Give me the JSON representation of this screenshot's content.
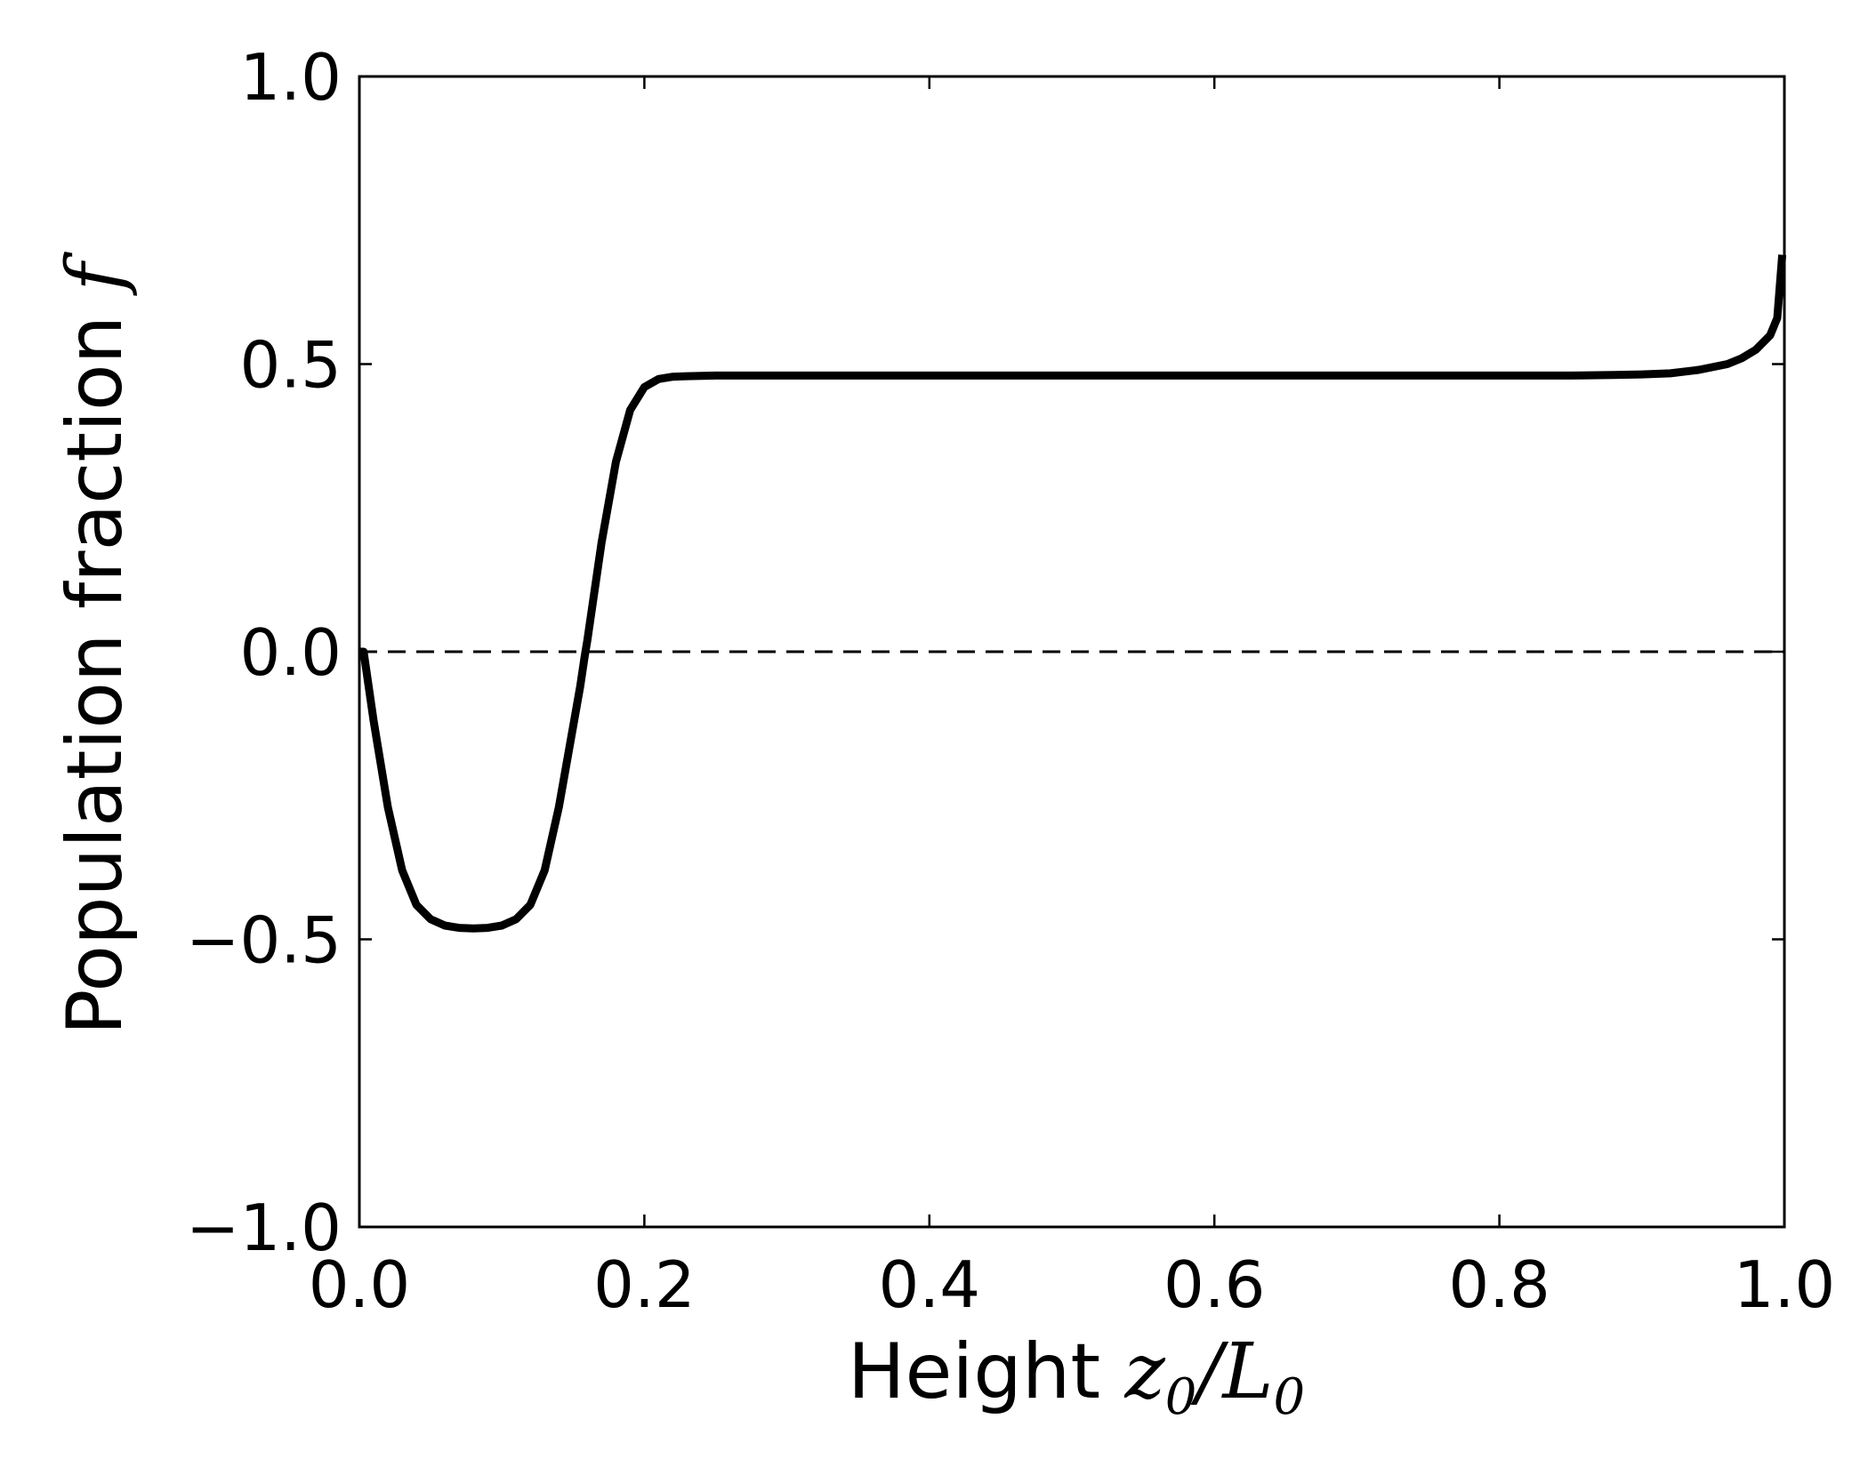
{
  "chart_data": {
    "type": "line",
    "title": "",
    "xlabel": {
      "text": "Height",
      "math_var": "z",
      "math_var_sub": "0",
      "math_sep": "/",
      "math_den": "L",
      "math_den_sub": "0"
    },
    "ylabel": {
      "text": "Population fraction",
      "math_var": "f"
    },
    "xlim": [
      0.0,
      1.0
    ],
    "ylim": [
      -1.0,
      1.0
    ],
    "xticks": [
      0.0,
      0.2,
      0.4,
      0.6,
      0.8,
      1.0
    ],
    "yticks": [
      -1.0,
      -0.5,
      0.0,
      0.5,
      1.0
    ],
    "xtick_labels": [
      "0.0",
      "0.2",
      "0.4",
      "0.6",
      "0.8",
      "1.0"
    ],
    "ytick_labels": [
      "−1.0",
      "−0.5",
      "0.0",
      "0.5",
      "1.0"
    ],
    "grid": false,
    "reference_line": {
      "y": 0.0,
      "style": "dashed",
      "color": "#000000"
    },
    "series": [
      {
        "color": "#000000",
        "x": [
          0.0,
          0.003,
          0.01,
          0.02,
          0.03,
          0.04,
          0.05,
          0.06,
          0.07,
          0.08,
          0.09,
          0.1,
          0.11,
          0.12,
          0.13,
          0.14,
          0.15,
          0.155,
          0.158,
          0.16,
          0.17,
          0.18,
          0.19,
          0.2,
          0.21,
          0.22,
          0.23,
          0.25,
          0.3,
          0.4,
          0.5,
          0.6,
          0.7,
          0.8,
          0.85,
          0.88,
          0.9,
          0.92,
          0.94,
          0.96,
          0.97,
          0.98,
          0.99,
          0.995,
          0.9985
        ],
        "y": [
          0.0,
          0.0,
          -0.12,
          -0.27,
          -0.38,
          -0.44,
          -0.465,
          -0.476,
          -0.48,
          -0.481,
          -0.48,
          -0.476,
          -0.465,
          -0.44,
          -0.38,
          -0.27,
          -0.13,
          -0.06,
          -0.01,
          0.02,
          0.19,
          0.33,
          0.42,
          0.46,
          0.474,
          0.478,
          0.479,
          0.48,
          0.48,
          0.48,
          0.48,
          0.48,
          0.48,
          0.48,
          0.48,
          0.481,
          0.482,
          0.484,
          0.49,
          0.5,
          0.51,
          0.525,
          0.55,
          0.58,
          0.69
        ]
      }
    ]
  }
}
